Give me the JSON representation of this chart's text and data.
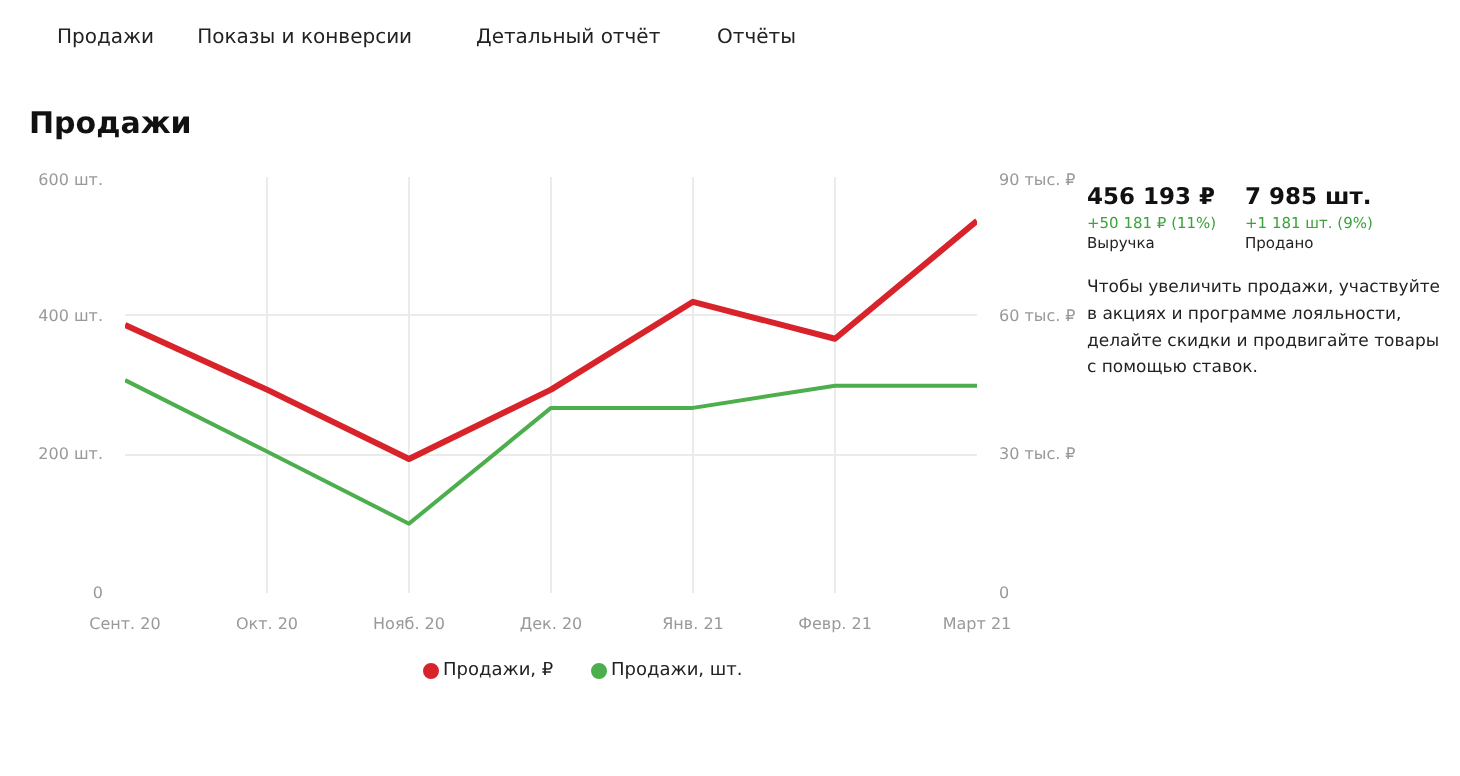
{
  "chart_data": [
    {
      "type": "line",
      "title": "Продажи",
      "annotations": [
        "Продажи",
        "Показы и конверсии",
        "Детальный отчёт",
        "Отчёты"
      ],
      "categories": [
        "Сент. 20",
        "Окт. 20",
        "Нояб. 20",
        "Дек. 20",
        "Янв. 21",
        "Февр. 21",
        "Март 21"
      ],
      "series": [
        {
          "name": "Продажи, ₽",
          "color": "#d8232a",
          "axis": "y2",
          "values": [
            58,
            44,
            29,
            44,
            63,
            55,
            80.5
          ]
        },
        {
          "name": "Продажи, шт.",
          "color": "#4cae4c",
          "values": [
            307,
            204,
            100,
            267,
            267,
            299,
            299
          ]
        }
      ],
      "ylim": [
        0,
        600
      ],
      "yticks": [
        0,
        {
          "value": 200,
          "label": "200 шт."
        },
        {
          "value": 400,
          "label": "400 шт."
        },
        {
          "value": 600,
          "label": "600 шт."
        }
      ],
      "y2lim": [
        0,
        90
      ],
      "y2ticks": [
        0,
        {
          "value": 30,
          "label": "30 тыс. ₽"
        },
        {
          "value": 60,
          "label": "60 тыс. ₽"
        },
        {
          "value": 90,
          "label": "90 тыс. ₽"
        }
      ],
      "grid": true,
      "legend": "bottom",
      "marker": "none",
      "line_style": "solid"
    },
    {
      "type": "other",
      "annotations": [
        "456 193 ₽",
        "+50 181 ₽ (11%)",
        "Выручка",
        "7 985 шт.",
        "+1 181 шт. (9%)",
        "Продано",
        "Чтобы увеличить продажи, участвуйте в акциях и программе лояльности, делайте скидки и продвигайте товары с помощью ставок."
      ]
    }
  ]
}
